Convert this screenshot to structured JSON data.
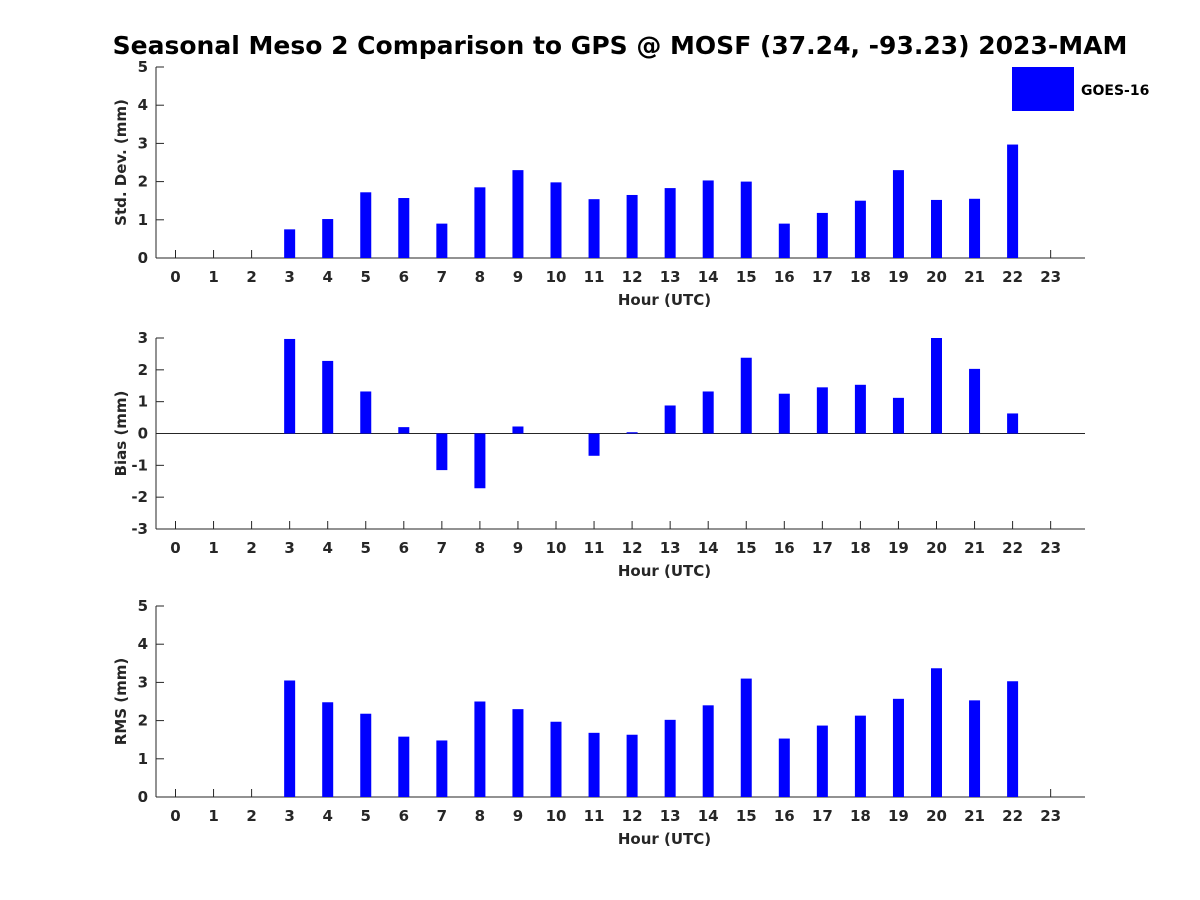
{
  "chart_data": {
    "title": "Seasonal Meso 2 Comparison to GPS @ MOSF (37.24, -93.23) 2023-MAM",
    "bar_color": "#0000ff",
    "legend": [
      "GOES-16"
    ],
    "hours": [
      0,
      1,
      2,
      3,
      4,
      5,
      6,
      7,
      8,
      9,
      10,
      11,
      12,
      13,
      14,
      15,
      16,
      17,
      18,
      19,
      20,
      21,
      22,
      23
    ],
    "panels": [
      {
        "type": "bar",
        "xlabel": "Hour (UTC)",
        "ylabel": "Std. Dev. (mm)",
        "ylim": [
          0,
          5
        ],
        "yticks": [
          0,
          1,
          2,
          3,
          4,
          5
        ],
        "baseline_axis": false,
        "values": [
          null,
          null,
          null,
          0.75,
          1.02,
          1.72,
          1.57,
          0.9,
          1.85,
          2.3,
          1.98,
          1.54,
          1.65,
          1.83,
          2.03,
          2.0,
          0.9,
          1.18,
          1.5,
          2.3,
          1.52,
          1.55,
          2.97,
          null
        ]
      },
      {
        "type": "bar",
        "xlabel": "Hour (UTC)",
        "ylabel": "Bias (mm)",
        "ylim": [
          -3,
          3
        ],
        "yticks": [
          -3,
          -2,
          -1,
          0,
          1,
          2,
          3
        ],
        "baseline_axis": true,
        "values": [
          null,
          null,
          null,
          2.97,
          2.28,
          1.32,
          0.2,
          -1.15,
          -1.72,
          0.22,
          null,
          -0.7,
          0.04,
          0.88,
          1.32,
          2.38,
          1.25,
          1.45,
          1.53,
          1.12,
          3.0,
          2.03,
          0.63,
          null
        ]
      },
      {
        "type": "bar",
        "xlabel": "Hour (UTC)",
        "ylabel": "RMS (mm)",
        "ylim": [
          0,
          5
        ],
        "yticks": [
          0,
          1,
          2,
          3,
          4,
          5
        ],
        "baseline_axis": false,
        "values": [
          null,
          null,
          null,
          3.05,
          2.48,
          2.18,
          1.58,
          1.48,
          2.5,
          2.3,
          1.97,
          1.68,
          1.63,
          2.02,
          2.4,
          3.1,
          1.53,
          1.87,
          2.13,
          2.57,
          3.37,
          2.53,
          3.03,
          null
        ]
      }
    ]
  }
}
